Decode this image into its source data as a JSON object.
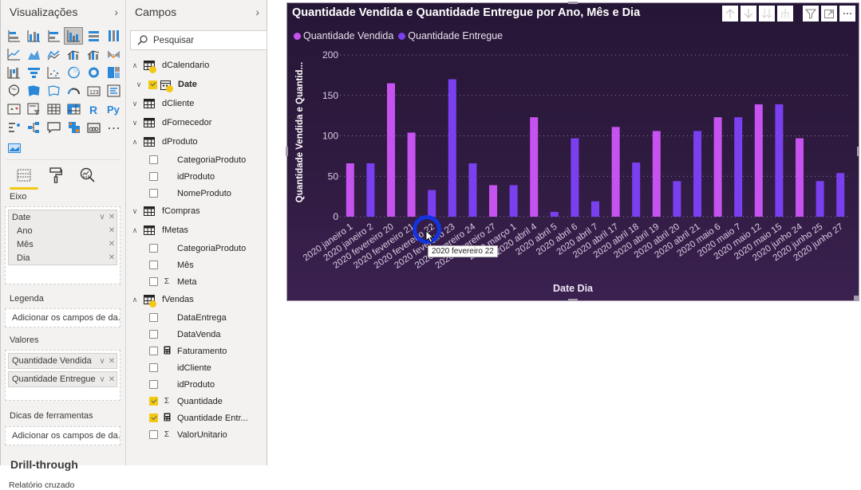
{
  "viz_pane": {
    "title": "Visualizações",
    "collapse_icon": "chevron-right-icon",
    "icons": [
      "stacked-bar-icon",
      "stacked-column-icon",
      "clustered-bar-icon",
      "clustered-column-icon",
      "100-stacked-bar-icon",
      "100-stacked-column-icon",
      "line-chart-icon",
      "area-chart-icon",
      "stacked-area-icon",
      "line-clustered-column-icon",
      "line-stacked-column-icon",
      "ribbon-chart-icon",
      "waterfall-icon",
      "funnel-icon",
      "scatter-icon",
      "pie-icon",
      "donut-icon",
      "treemap-icon",
      "map-icon",
      "filled-map-icon",
      "shape-map-icon",
      "gauge-icon",
      "card-icon",
      "multirow-card-icon",
      "kpi-icon",
      "slicer-icon",
      "table-icon",
      "matrix-icon",
      "r-visual-icon",
      "python-visual-icon",
      "key-influencers-icon",
      "decomposition-tree-icon",
      "qa-icon",
      "smart-narrative-icon",
      "paginated-icon",
      "more-icon"
    ],
    "extra_icon": "custom-visual-icon",
    "tabs": [
      {
        "name": "fields-tab-icon",
        "active": true
      },
      {
        "name": "format-paint-roller-icon",
        "active": false
      },
      {
        "name": "analytics-magnifier-icon",
        "active": false
      }
    ],
    "wells": {
      "axis_label": "Eixo",
      "axis_group": {
        "label": "Date",
        "children": [
          "Ano",
          "Mês",
          "Dia"
        ]
      },
      "legend_label": "Legenda",
      "legend_placeholder": "Adicionar os campos de da...",
      "values_label": "Valores",
      "values": [
        "Quantidade Vendida",
        "Quantidade Entregue"
      ],
      "tooltips_label": "Dicas de ferramentas",
      "tooltips_placeholder": "Adicionar os campos de da..."
    },
    "drillthrough_title": "Drill-through",
    "cross_report_label": "Relatório cruzado"
  },
  "fields_pane": {
    "title": "Campos",
    "collapse_icon": "chevron-right-icon",
    "search_placeholder": "Pesquisar",
    "tree": [
      {
        "kind": "table",
        "name": "dCalendario",
        "expanded": true,
        "used": true
      },
      {
        "kind": "subtable",
        "name": "Date",
        "expanded": false,
        "used": true,
        "checked": true
      },
      {
        "kind": "table",
        "name": "dCliente",
        "expanded": false,
        "used": false
      },
      {
        "kind": "table",
        "name": "dFornecedor",
        "expanded": false,
        "used": false
      },
      {
        "kind": "table",
        "name": "dProduto",
        "expanded": true,
        "used": false
      },
      {
        "kind": "field",
        "name": "CategoriaProduto",
        "type": "",
        "checked": false
      },
      {
        "kind": "field",
        "name": "idProduto",
        "type": "",
        "checked": false
      },
      {
        "kind": "field",
        "name": "NomeProduto",
        "type": "",
        "checked": false
      },
      {
        "kind": "table",
        "name": "fCompras",
        "expanded": false,
        "used": false
      },
      {
        "kind": "table",
        "name": "fMetas",
        "expanded": true,
        "used": false
      },
      {
        "kind": "field",
        "name": "CategoriaProduto",
        "type": "",
        "checked": false
      },
      {
        "kind": "field",
        "name": "Mês",
        "type": "",
        "checked": false
      },
      {
        "kind": "field",
        "name": "Meta",
        "type": "Σ",
        "checked": false
      },
      {
        "kind": "table",
        "name": "fVendas",
        "expanded": true,
        "used": true
      },
      {
        "kind": "field",
        "name": "DataEntrega",
        "type": "",
        "checked": false
      },
      {
        "kind": "field",
        "name": "DataVenda",
        "type": "",
        "checked": false
      },
      {
        "kind": "field",
        "name": "Faturamento",
        "type": "▦",
        "checked": false
      },
      {
        "kind": "field",
        "name": "idCliente",
        "type": "",
        "checked": false
      },
      {
        "kind": "field",
        "name": "idProduto",
        "type": "",
        "checked": false
      },
      {
        "kind": "field",
        "name": "Quantidade",
        "type": "Σ",
        "checked": true
      },
      {
        "kind": "field",
        "name": "Quantidade Entr...",
        "type": "▦",
        "checked": true
      },
      {
        "kind": "field",
        "name": "ValorUnitario",
        "type": "Σ",
        "checked": false
      }
    ]
  },
  "visual": {
    "title": "Quantidade Vendida e Quantidade Entregue por Ano, Mês e Dia",
    "toolbar": [
      "drill-up-arrow-icon",
      "drill-down-arrow-icon",
      "expand-next-level-icon",
      "expand-hierarchy-icon",
      "filter-icon",
      "focus-mode-icon",
      "more-options-icon"
    ],
    "tooltip_text": "2020 fevereiro 22",
    "colors": {
      "vendida": "#c653f0",
      "entregue": "#7a40ef",
      "gridline": "#8a7898",
      "axis_text": "#d9cde3"
    }
  },
  "chart_data": {
    "type": "bar",
    "title": "Quantidade Vendida e Quantidade Entregue por Ano, Mês e Dia",
    "xlabel": "Date Dia",
    "ylabel": "Quantidade Vendida e Quantid...",
    "ylim": [
      0,
      200
    ],
    "yticks": [
      0,
      50,
      100,
      150,
      200
    ],
    "grid": true,
    "legend_position": "top-left",
    "categories": [
      "2020 janeiro 1",
      "2020 janeiro 2",
      "2020 fevereiro 20",
      "2020 fevereiro 21",
      "2020 fevereiro 22",
      "2020 fevereiro 23",
      "2020 fevereiro 24",
      "2020 fevereiro 27",
      "2020 março 1",
      "2020 abril 4",
      "2020 abril 5",
      "2020 abril 6",
      "2020 abril 7",
      "2020 abril 17",
      "2020 abril 18",
      "2020 abril 19",
      "2020 abril 20",
      "2020 abril 21",
      "2020 maio 6",
      "2020 maio 7",
      "2020 maio 12",
      "2020 maio 15",
      "2020 junho 24",
      "2020 junho 25",
      "2020 junho 27"
    ],
    "series": [
      {
        "name": "Quantidade Vendida",
        "color": "#c653f0",
        "values": [
          66,
          null,
          165,
          104,
          null,
          null,
          null,
          39,
          null,
          123,
          null,
          null,
          null,
          111,
          null,
          106,
          null,
          null,
          123,
          null,
          139,
          null,
          97,
          null,
          null
        ]
      },
      {
        "name": "Quantidade Entregue",
        "color": "#7a40ef",
        "values": [
          null,
          66,
          null,
          null,
          33,
          170,
          66,
          null,
          39,
          null,
          6,
          97,
          19,
          null,
          67,
          null,
          44,
          106,
          null,
          123,
          null,
          139,
          null,
          44,
          54
        ]
      }
    ]
  }
}
